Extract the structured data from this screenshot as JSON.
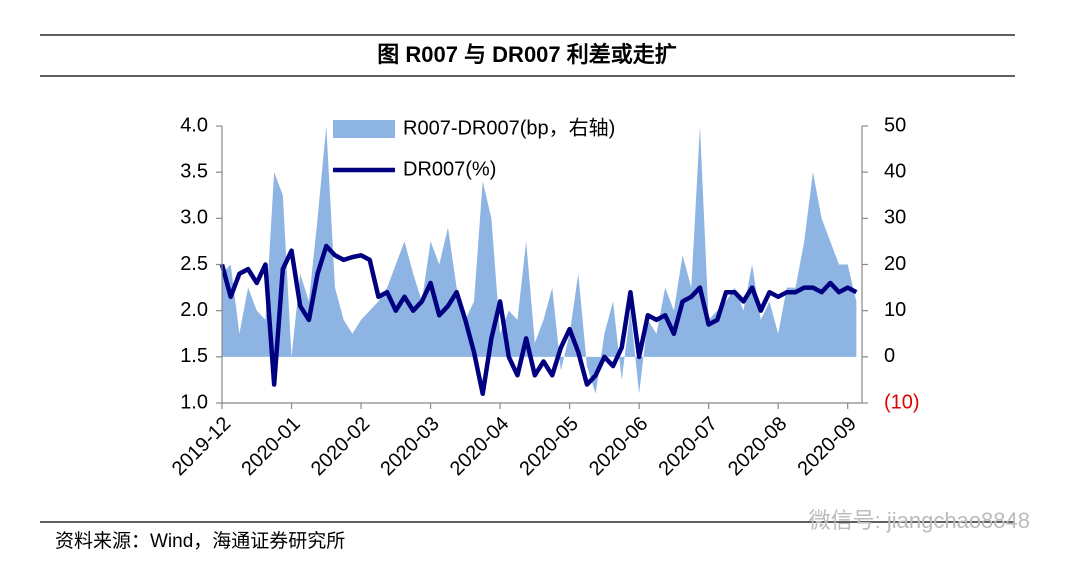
{
  "chart_data": {
    "type": "line",
    "title": "图  R007 与 DR007 利差或走扩",
    "source": "资料来源：Wind，海通证券研究所",
    "watermark": "微信号: jiangchao8848",
    "categories": [
      "2019-12",
      null,
      null,
      null,
      null,
      null,
      null,
      null,
      "2020-01",
      null,
      null,
      null,
      null,
      null,
      null,
      null,
      "2020-02",
      null,
      null,
      null,
      null,
      null,
      null,
      null,
      "2020-03",
      null,
      null,
      null,
      null,
      null,
      null,
      null,
      "2020-04",
      null,
      null,
      null,
      null,
      null,
      null,
      null,
      "2020-05",
      null,
      null,
      null,
      null,
      null,
      null,
      null,
      "2020-06",
      null,
      null,
      null,
      null,
      null,
      null,
      null,
      "2020-07",
      null,
      null,
      null,
      null,
      null,
      null,
      null,
      "2020-08",
      null,
      null,
      null,
      null,
      null,
      null,
      null,
      "2020-09",
      null
    ],
    "series": [
      {
        "name": "R007-DR007(bp，右轴)",
        "type": "area",
        "axis": "y2",
        "color": "#8db4e2",
        "values": [
          18,
          20,
          5,
          15,
          10,
          8,
          40,
          35,
          0,
          18,
          12,
          30,
          50,
          15,
          8,
          5,
          8,
          10,
          12,
          15,
          20,
          25,
          18,
          12,
          25,
          20,
          28,
          15,
          8,
          12,
          38,
          30,
          5,
          10,
          8,
          25,
          3,
          8,
          15,
          -3,
          5,
          18,
          -2,
          -8,
          5,
          12,
          -5,
          10,
          -8,
          8,
          5,
          15,
          10,
          22,
          15,
          50,
          8,
          10,
          12,
          15,
          10,
          20,
          8,
          12,
          5,
          15,
          15,
          25,
          40,
          30,
          25,
          20,
          20,
          12
        ]
      },
      {
        "name": "DR007(%)",
        "type": "line",
        "axis": "y",
        "color": "#000080",
        "values": [
          2.5,
          2.15,
          2.4,
          2.45,
          2.3,
          2.5,
          1.2,
          2.45,
          2.65,
          2.05,
          1.9,
          2.4,
          2.7,
          2.6,
          2.55,
          2.58,
          2.6,
          2.55,
          2.15,
          2.2,
          2.0,
          2.15,
          2.0,
          2.1,
          2.3,
          1.95,
          2.05,
          2.2,
          1.9,
          1.55,
          1.1,
          1.7,
          2.1,
          1.5,
          1.3,
          1.7,
          1.3,
          1.45,
          1.3,
          1.6,
          1.8,
          1.55,
          1.2,
          1.3,
          1.5,
          1.4,
          1.6,
          2.2,
          1.5,
          1.95,
          1.9,
          1.95,
          1.75,
          2.1,
          2.15,
          2.25,
          1.85,
          1.9,
          2.2,
          2.2,
          2.1,
          2.25,
          2.0,
          2.2,
          2.15,
          2.2,
          2.2,
          2.25,
          2.25,
          2.2,
          2.3,
          2.2,
          2.25,
          2.2
        ]
      }
    ],
    "ylim": [
      1.0,
      4.0
    ],
    "yticks": [
      {
        "value": 1.0,
        "label": "1.0"
      },
      1.5,
      {
        "value": 2.0,
        "label": "2.0"
      },
      2.5,
      {
        "value": 3.0,
        "label": "3.0"
      },
      3.5,
      {
        "value": 4.0,
        "label": "4.0"
      }
    ],
    "y2lim": [
      -10,
      50
    ],
    "y2ticks": [
      {
        "value": -10,
        "label": "(10)"
      },
      0,
      10,
      20,
      30,
      40,
      50
    ],
    "grid": false,
    "legend": "top"
  }
}
